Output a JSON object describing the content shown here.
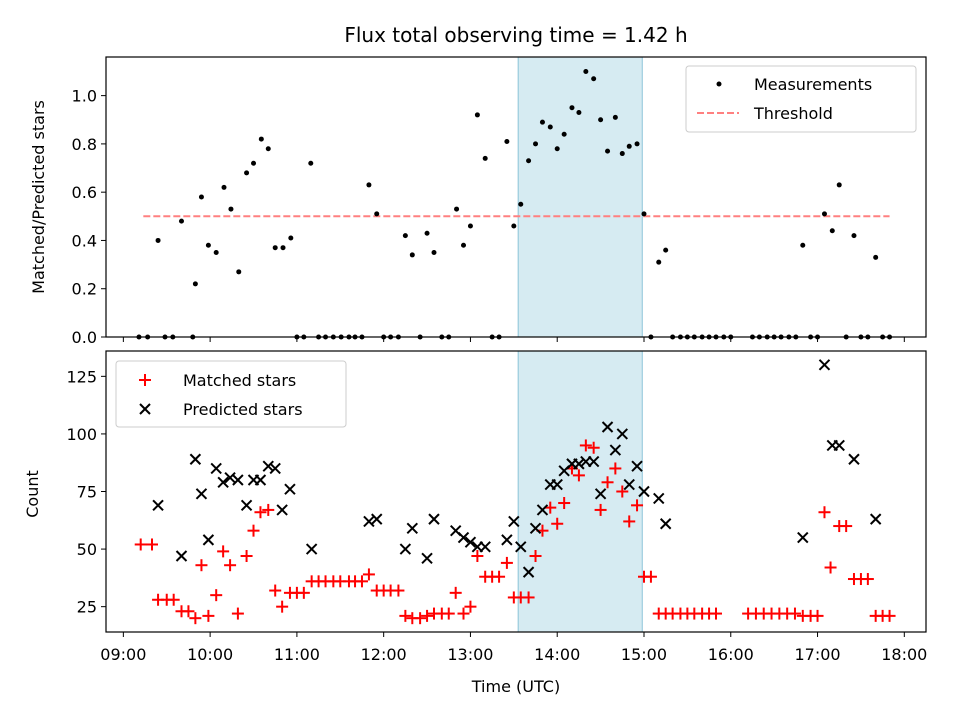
{
  "chart_data": [
    {
      "type": "scatter",
      "title": "Flux total observing time = 1.42 h",
      "xlabel": "",
      "ylabel": "Matched/Predicted stars",
      "xlim": [
        8.8,
        18.25
      ],
      "ylim": [
        0,
        1.16
      ],
      "yticks": [
        0.0,
        0.2,
        0.4,
        0.6,
        0.8,
        1.0
      ],
      "yticklabels": [
        "0.0",
        "0.2",
        "0.4",
        "0.6",
        "0.8",
        "1.0"
      ],
      "grid": false,
      "legend_position": "top-right",
      "highlight_span": [
        13.55,
        14.98
      ],
      "threshold": {
        "name": "Threshold",
        "y": 0.5,
        "x_range": [
          9.23,
          17.83
        ],
        "color": "#ff8080"
      },
      "series": [
        {
          "name": "Measurements",
          "color": "#000000",
          "points": [
            [
              9.18,
              0
            ],
            [
              9.28,
              0
            ],
            [
              9.4,
              0.4
            ],
            [
              9.48,
              0
            ],
            [
              9.57,
              0
            ],
            [
              9.67,
              0.48
            ],
            [
              9.8,
              0
            ],
            [
              9.83,
              0.22
            ],
            [
              9.9,
              0.58
            ],
            [
              9.98,
              0.38
            ],
            [
              10.07,
              0.35
            ],
            [
              10.16,
              0.62
            ],
            [
              10.24,
              0.53
            ],
            [
              10.33,
              0.27
            ],
            [
              10.42,
              0.68
            ],
            [
              10.5,
              0.72
            ],
            [
              10.59,
              0.82
            ],
            [
              10.67,
              0.78
            ],
            [
              10.75,
              0.37
            ],
            [
              10.84,
              0.37
            ],
            [
              10.93,
              0.41
            ],
            [
              11.0,
              0
            ],
            [
              11.08,
              0
            ],
            [
              11.16,
              0.72
            ],
            [
              11.25,
              0
            ],
            [
              11.33,
              0
            ],
            [
              11.42,
              0
            ],
            [
              11.51,
              0
            ],
            [
              11.6,
              0
            ],
            [
              11.67,
              0
            ],
            [
              11.75,
              0
            ],
            [
              11.83,
              0.63
            ],
            [
              11.92,
              0.51
            ],
            [
              12.0,
              0
            ],
            [
              12.08,
              0
            ],
            [
              12.17,
              0
            ],
            [
              12.25,
              0.42
            ],
            [
              12.33,
              0.34
            ],
            [
              12.42,
              0
            ],
            [
              12.5,
              0.43
            ],
            [
              12.58,
              0.35
            ],
            [
              12.67,
              0
            ],
            [
              12.75,
              0
            ],
            [
              12.84,
              0.53
            ],
            [
              12.92,
              0.38
            ],
            [
              13.0,
              0.46
            ],
            [
              13.08,
              0.92
            ],
            [
              13.17,
              0.74
            ],
            [
              13.25,
              0
            ],
            [
              13.33,
              0
            ],
            [
              13.42,
              0.81
            ],
            [
              13.5,
              0.46
            ],
            [
              13.58,
              0.55
            ],
            [
              13.67,
              0.73
            ],
            [
              13.75,
              0.8
            ],
            [
              13.83,
              0.89
            ],
            [
              13.92,
              0.87
            ],
            [
              14.0,
              0.78
            ],
            [
              14.08,
              0.84
            ],
            [
              14.17,
              0.95
            ],
            [
              14.25,
              0.93
            ],
            [
              14.33,
              1.1
            ],
            [
              14.42,
              1.07
            ],
            [
              14.5,
              0.9
            ],
            [
              14.58,
              0.77
            ],
            [
              14.67,
              0.91
            ],
            [
              14.75,
              0.76
            ],
            [
              14.83,
              0.79
            ],
            [
              14.92,
              0.8
            ],
            [
              15.0,
              0.51
            ],
            [
              15.08,
              0
            ],
            [
              15.17,
              0.31
            ],
            [
              15.25,
              0.36
            ],
            [
              15.33,
              0
            ],
            [
              15.42,
              0
            ],
            [
              15.5,
              0
            ],
            [
              15.58,
              0
            ],
            [
              15.67,
              0
            ],
            [
              15.75,
              0
            ],
            [
              15.83,
              0
            ],
            [
              15.92,
              0
            ],
            [
              16.0,
              0
            ],
            [
              16.25,
              0
            ],
            [
              16.33,
              0
            ],
            [
              16.42,
              0
            ],
            [
              16.5,
              0
            ],
            [
              16.58,
              0
            ],
            [
              16.67,
              0
            ],
            [
              16.75,
              0
            ],
            [
              16.83,
              0.38
            ],
            [
              16.92,
              0
            ],
            [
              17.0,
              0
            ],
            [
              17.08,
              0.51
            ],
            [
              17.17,
              0.44
            ],
            [
              17.25,
              0.63
            ],
            [
              17.33,
              0
            ],
            [
              17.42,
              0.42
            ],
            [
              17.5,
              0
            ],
            [
              17.58,
              0
            ],
            [
              17.67,
              0.33
            ],
            [
              17.75,
              0
            ],
            [
              17.83,
              0
            ]
          ]
        }
      ]
    },
    {
      "type": "scatter",
      "title": "",
      "xlabel": "Time (UTC)",
      "ylabel": "Count",
      "xlim": [
        8.8,
        18.25
      ],
      "ylim": [
        14,
        136
      ],
      "xticks": [
        9,
        10,
        11,
        12,
        13,
        14,
        15,
        16,
        17,
        18
      ],
      "xticklabels": [
        "09:00",
        "10:00",
        "11:00",
        "12:00",
        "13:00",
        "14:00",
        "15:00",
        "16:00",
        "17:00",
        "18:00"
      ],
      "yticks": [
        25,
        50,
        75,
        100,
        125
      ],
      "yticklabels": [
        "25",
        "50",
        "75",
        "100",
        "125"
      ],
      "grid": false,
      "legend_position": "top-left",
      "highlight_span": [
        13.55,
        14.98
      ],
      "series": [
        {
          "name": "Matched stars",
          "marker": "plus",
          "color": "#ff0000",
          "points": [
            [
              9.2,
              52
            ],
            [
              9.33,
              52
            ],
            [
              9.4,
              28
            ],
            [
              9.5,
              28
            ],
            [
              9.58,
              28
            ],
            [
              9.67,
              23
            ],
            [
              9.75,
              23
            ],
            [
              9.83,
              20
            ],
            [
              9.9,
              43
            ],
            [
              9.98,
              21
            ],
            [
              10.07,
              30
            ],
            [
              10.15,
              49
            ],
            [
              10.23,
              43
            ],
            [
              10.32,
              22
            ],
            [
              10.42,
              47
            ],
            [
              10.5,
              58
            ],
            [
              10.58,
              66
            ],
            [
              10.67,
              67
            ],
            [
              10.75,
              32
            ],
            [
              10.83,
              25
            ],
            [
              10.92,
              31
            ],
            [
              11.0,
              31
            ],
            [
              11.08,
              31
            ],
            [
              11.17,
              36
            ],
            [
              11.25,
              36
            ],
            [
              11.33,
              36
            ],
            [
              11.42,
              36
            ],
            [
              11.5,
              36
            ],
            [
              11.6,
              36
            ],
            [
              11.67,
              36
            ],
            [
              11.75,
              36
            ],
            [
              11.83,
              39
            ],
            [
              11.92,
              32
            ],
            [
              12.0,
              32
            ],
            [
              12.08,
              32
            ],
            [
              12.17,
              32
            ],
            [
              12.25,
              21
            ],
            [
              12.33,
              20
            ],
            [
              12.42,
              20
            ],
            [
              12.5,
              21
            ],
            [
              12.58,
              22
            ],
            [
              12.67,
              22
            ],
            [
              12.75,
              22
            ],
            [
              12.83,
              31
            ],
            [
              12.92,
              22
            ],
            [
              13.0,
              25
            ],
            [
              13.08,
              47
            ],
            [
              13.17,
              38
            ],
            [
              13.25,
              38
            ],
            [
              13.33,
              38
            ],
            [
              13.42,
              44
            ],
            [
              13.5,
              29
            ],
            [
              13.58,
              29
            ],
            [
              13.67,
              29
            ],
            [
              13.75,
              47
            ],
            [
              13.83,
              58
            ],
            [
              13.92,
              68
            ],
            [
              14.0,
              61
            ],
            [
              14.08,
              70
            ],
            [
              14.17,
              85
            ],
            [
              14.25,
              82
            ],
            [
              14.33,
              95
            ],
            [
              14.42,
              94
            ],
            [
              14.5,
              67
            ],
            [
              14.58,
              79
            ],
            [
              14.67,
              85
            ],
            [
              14.75,
              75
            ],
            [
              14.83,
              62
            ],
            [
              14.92,
              69
            ],
            [
              15.0,
              38
            ],
            [
              15.08,
              38
            ],
            [
              15.17,
              22
            ],
            [
              15.25,
              22
            ],
            [
              15.33,
              22
            ],
            [
              15.42,
              22
            ],
            [
              15.5,
              22
            ],
            [
              15.58,
              22
            ],
            [
              15.67,
              22
            ],
            [
              15.75,
              22
            ],
            [
              15.83,
              22
            ],
            [
              16.2,
              22
            ],
            [
              16.29,
              22
            ],
            [
              16.38,
              22
            ],
            [
              16.47,
              22
            ],
            [
              16.56,
              22
            ],
            [
              16.65,
              22
            ],
            [
              16.74,
              22
            ],
            [
              16.83,
              21
            ],
            [
              16.92,
              21
            ],
            [
              17.0,
              21
            ],
            [
              17.08,
              66
            ],
            [
              17.15,
              42
            ],
            [
              17.25,
              60
            ],
            [
              17.33,
              60
            ],
            [
              17.42,
              37
            ],
            [
              17.5,
              37
            ],
            [
              17.58,
              37
            ],
            [
              17.67,
              21
            ],
            [
              17.75,
              21
            ],
            [
              17.83,
              21
            ]
          ]
        },
        {
          "name": "Predicted stars",
          "marker": "x",
          "color": "#000000",
          "points": [
            [
              9.4,
              69
            ],
            [
              9.67,
              47
            ],
            [
              9.83,
              89
            ],
            [
              9.9,
              74
            ],
            [
              9.98,
              54
            ],
            [
              10.07,
              85
            ],
            [
              10.15,
              79
            ],
            [
              10.23,
              81
            ],
            [
              10.32,
              80
            ],
            [
              10.42,
              69
            ],
            [
              10.5,
              80
            ],
            [
              10.58,
              80
            ],
            [
              10.67,
              86
            ],
            [
              10.75,
              85
            ],
            [
              10.83,
              67
            ],
            [
              10.92,
              76
            ],
            [
              11.17,
              50
            ],
            [
              11.83,
              62
            ],
            [
              11.92,
              63
            ],
            [
              12.25,
              50
            ],
            [
              12.33,
              59
            ],
            [
              12.5,
              46
            ],
            [
              12.58,
              63
            ],
            [
              12.83,
              58
            ],
            [
              12.92,
              55
            ],
            [
              13.0,
              53
            ],
            [
              13.08,
              51
            ],
            [
              13.17,
              51
            ],
            [
              13.42,
              54
            ],
            [
              13.5,
              62
            ],
            [
              13.58,
              51
            ],
            [
              13.67,
              40
            ],
            [
              13.75,
              59
            ],
            [
              13.83,
              67
            ],
            [
              13.92,
              78
            ],
            [
              14.0,
              78
            ],
            [
              14.08,
              84
            ],
            [
              14.17,
              87
            ],
            [
              14.25,
              87
            ],
            [
              14.33,
              88
            ],
            [
              14.42,
              88
            ],
            [
              14.5,
              74
            ],
            [
              14.58,
              103
            ],
            [
              14.67,
              93
            ],
            [
              14.75,
              100
            ],
            [
              14.83,
              78
            ],
            [
              14.92,
              86
            ],
            [
              15.0,
              75
            ],
            [
              15.17,
              72
            ],
            [
              15.25,
              61
            ],
            [
              16.83,
              55
            ],
            [
              17.08,
              130
            ],
            [
              17.17,
              95
            ],
            [
              17.25,
              95
            ],
            [
              17.42,
              89
            ],
            [
              17.67,
              63
            ]
          ]
        }
      ]
    }
  ]
}
